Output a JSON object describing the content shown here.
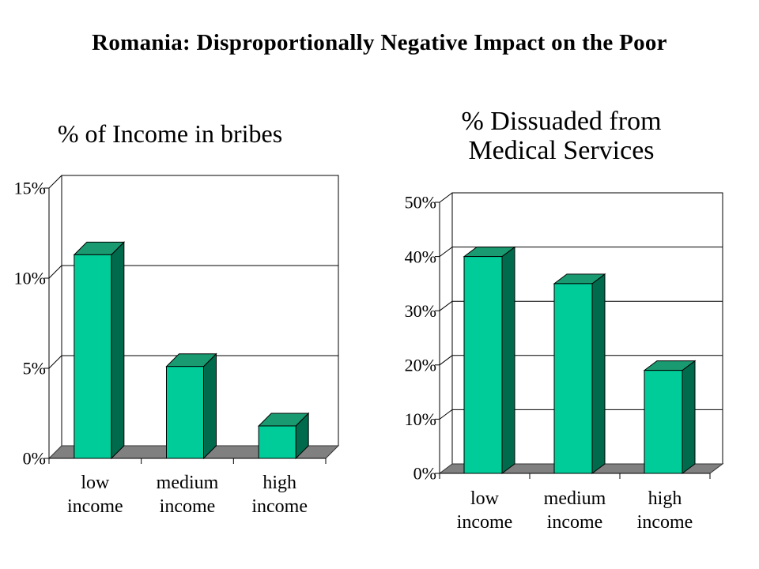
{
  "page": {
    "title": "Romania: Disproportionally Negative Impact on the Poor"
  },
  "colors": {
    "bar_front": "#00cc99",
    "bar_top": "#1a9a70",
    "bar_side": "#006a4d",
    "floor": "#808080",
    "grid": "#000000"
  },
  "chart_data": [
    {
      "type": "bar",
      "title_lines": [
        "% of Income in bribes"
      ],
      "categories": [
        [
          "low",
          "income"
        ],
        [
          "medium",
          "income"
        ],
        [
          "high",
          "income"
        ]
      ],
      "values": [
        11.3,
        5.1,
        1.8
      ],
      "ylim": [
        0,
        15
      ],
      "yticks": [
        0,
        5,
        10,
        15
      ],
      "ytick_labels": [
        "0%",
        "5%",
        "10%",
        "15%"
      ],
      "grid": true,
      "three_d": true
    },
    {
      "type": "bar",
      "title_lines": [
        "% Dissuaded from",
        "Medical Services"
      ],
      "categories": [
        [
          "low",
          "income"
        ],
        [
          "medium",
          "income"
        ],
        [
          "high",
          "income"
        ]
      ],
      "values": [
        40,
        35,
        19
      ],
      "ylim": [
        0,
        50
      ],
      "yticks": [
        0,
        10,
        20,
        30,
        40,
        50
      ],
      "ytick_labels": [
        "0%",
        "10%",
        "20%",
        "30%",
        "40%",
        "50%"
      ],
      "grid": true,
      "three_d": true
    }
  ]
}
